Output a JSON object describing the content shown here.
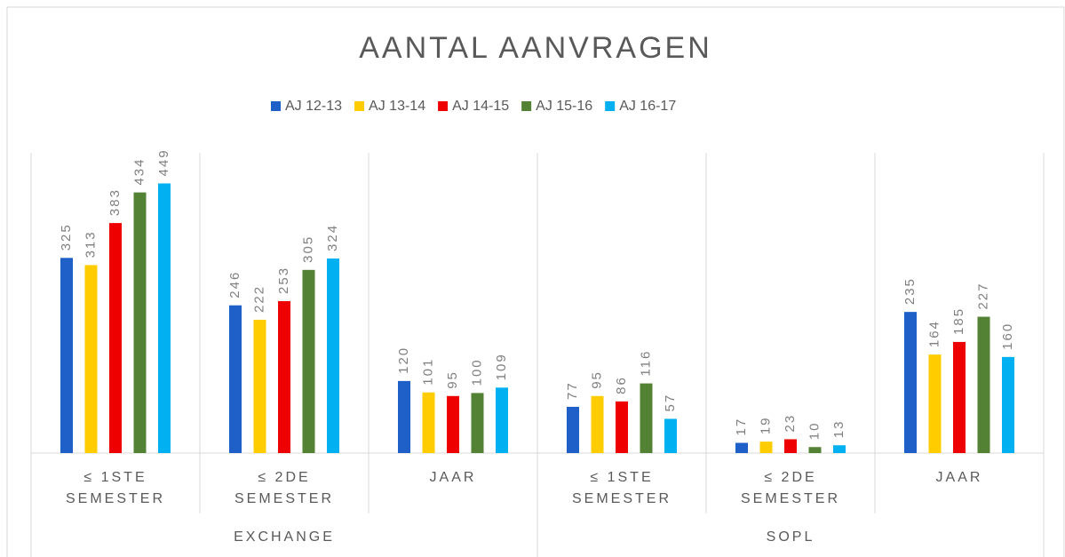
{
  "chart_data": {
    "type": "bar",
    "title": "AANTAL AANVRAGEN",
    "groups": [
      "EXCHANGE",
      "SOPL"
    ],
    "categories": [
      "≤ 1STE SEMESTER",
      "≤ 2DE SEMESTER",
      "JAAR",
      "≤ 1STE SEMESTER",
      "≤ 2DE SEMESTER",
      "JAAR"
    ],
    "series": [
      {
        "name": "AJ 12-13",
        "color": "#1f5fc8",
        "values": [
          325,
          246,
          120,
          77,
          17,
          235
        ]
      },
      {
        "name": "AJ 13-14",
        "color": "#ffcc00",
        "values": [
          313,
          222,
          101,
          95,
          19,
          164
        ]
      },
      {
        "name": "AJ 14-15",
        "color": "#ee0000",
        "values": [
          383,
          253,
          95,
          86,
          23,
          185
        ]
      },
      {
        "name": "AJ 15-16",
        "color": "#548235",
        "values": [
          434,
          305,
          100,
          116,
          10,
          227
        ]
      },
      {
        "name": "AJ 16-17",
        "color": "#00b0f0",
        "values": [
          449,
          324,
          109,
          57,
          13,
          160
        ]
      }
    ],
    "ylim": [
      0,
      500
    ],
    "legend": "top"
  }
}
